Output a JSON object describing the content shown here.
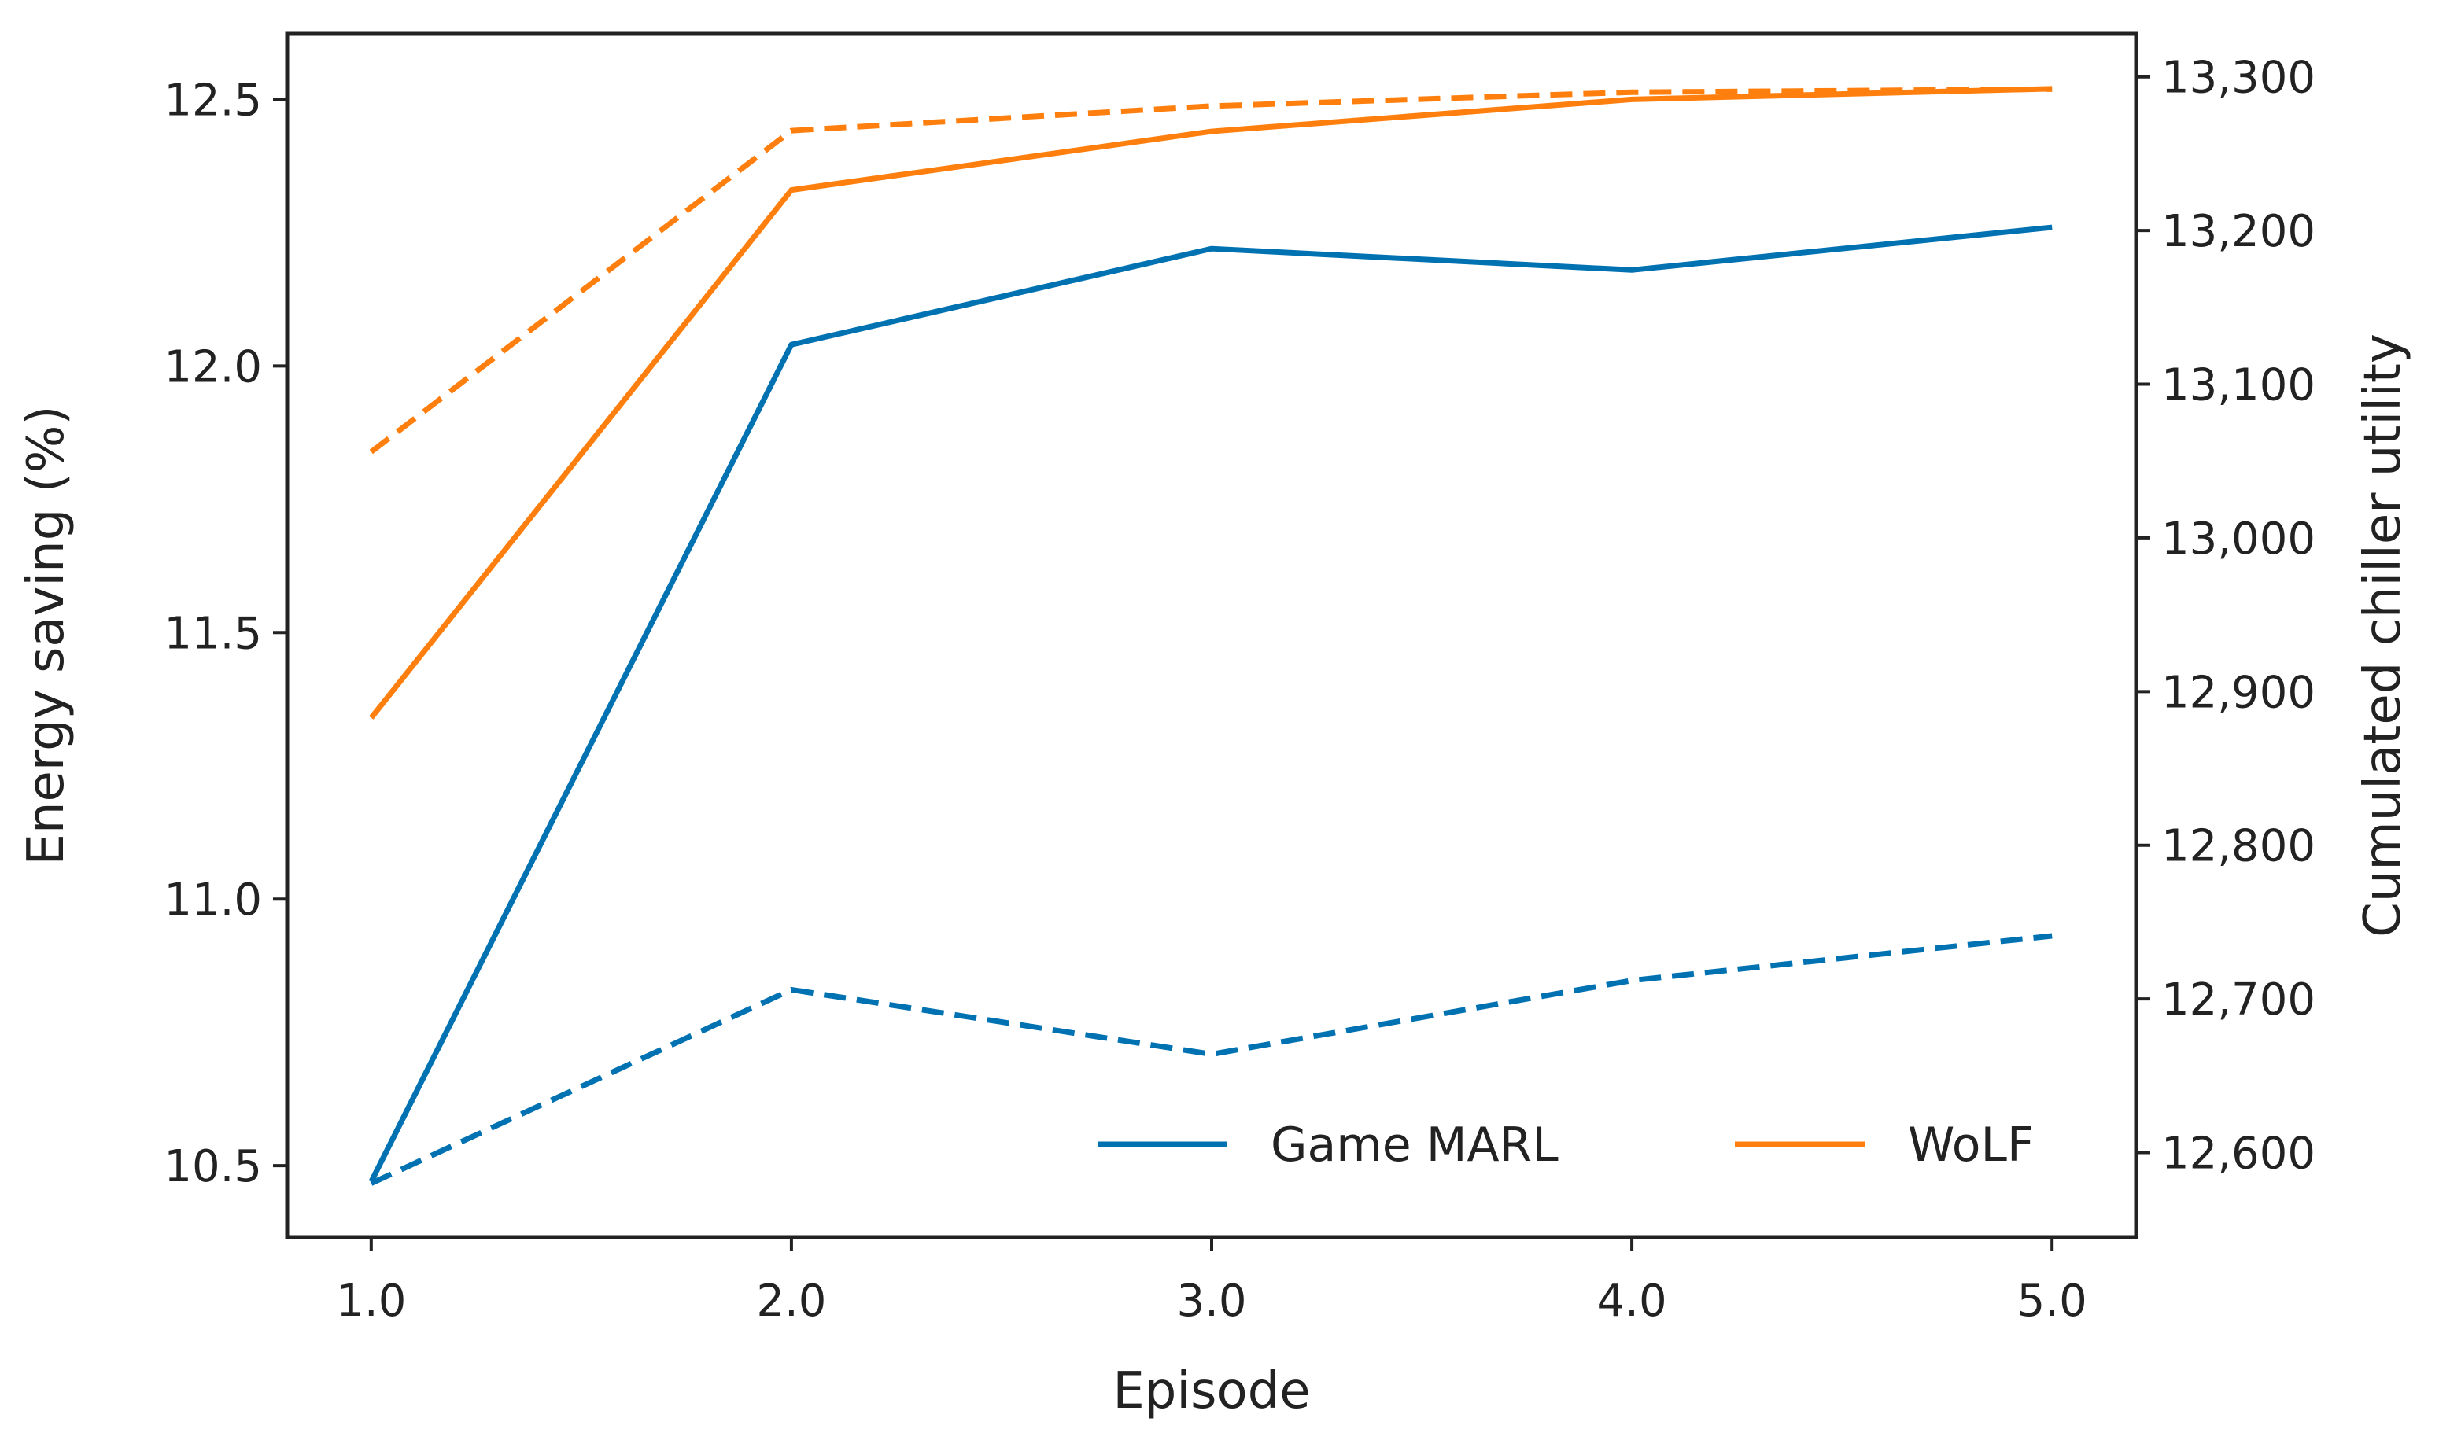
{
  "chart_data": {
    "type": "line",
    "x": [
      1.0,
      2.0,
      3.0,
      4.0,
      5.0
    ],
    "xlabel": "Episode",
    "xlim": [
      0.8,
      5.2
    ],
    "xticks": [
      "1.0",
      "2.0",
      "3.0",
      "4.0",
      "5.0"
    ],
    "ylabel": "Energy saving (%)",
    "ylim": [
      10.366,
      12.623
    ],
    "yticks": [
      10.5,
      11.0,
      11.5,
      12.0,
      12.5
    ],
    "yticklabels": [
      "10.5",
      "11.0",
      "11.5",
      "12.0",
      "12.5"
    ],
    "y2label": "Cumulated chiller utility",
    "y2lim": [
      12545,
      13328
    ],
    "y2ticks": [
      12600,
      12700,
      12800,
      12900,
      13000,
      13100,
      13200,
      13300
    ],
    "y2ticklabels": [
      "12,600",
      "12,700",
      "12,800",
      "12,900",
      "13,000",
      "13,100",
      "13,200",
      "13,300"
    ],
    "grid": false,
    "legend_position": "bottom-right",
    "series": [
      {
        "name": "Game MARL",
        "axis": "left",
        "style": "solid",
        "color": "#0072b2",
        "values": [
          10.47,
          12.04,
          12.22,
          12.18,
          12.26
        ]
      },
      {
        "name": "WoLF",
        "axis": "left",
        "style": "solid",
        "color": "#ff7f0e",
        "values": [
          11.34,
          12.33,
          12.44,
          12.5,
          12.52
        ]
      },
      {
        "name": "Game MARL",
        "axis": "right",
        "style": "dashed",
        "color": "#0072b2",
        "values": [
          12580,
          12706,
          12664,
          12712,
          12741
        ]
      },
      {
        "name": "WoLF",
        "axis": "right",
        "style": "dashed",
        "color": "#ff7f0e",
        "values": [
          13056,
          13265,
          13281,
          13290,
          13292
        ]
      }
    ],
    "legend": [
      {
        "label": "Game MARL",
        "color": "#0072b2"
      },
      {
        "label": "WoLF",
        "color": "#ff7f0e"
      }
    ]
  }
}
